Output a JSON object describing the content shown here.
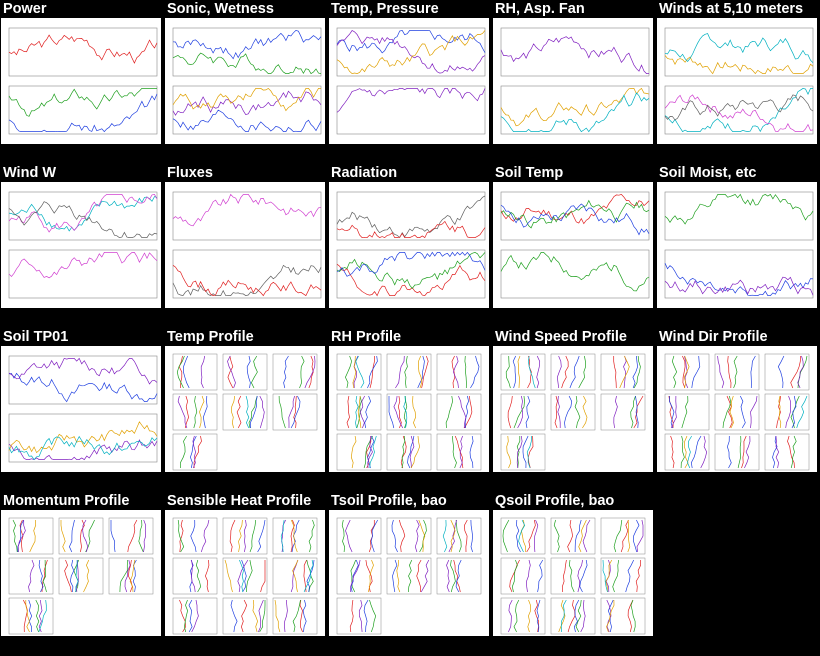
{
  "panels": [
    {
      "title": "Power",
      "kind": "ts"
    },
    {
      "title": "Sonic, Wetness",
      "kind": "ts"
    },
    {
      "title": "Temp, Pressure",
      "kind": "ts"
    },
    {
      "title": "RH, Asp. Fan",
      "kind": "ts"
    },
    {
      "title": "Winds at 5,10 meters",
      "kind": "ts"
    },
    {
      "title": "Wind W",
      "kind": "ts"
    },
    {
      "title": "Fluxes",
      "kind": "ts"
    },
    {
      "title": "Radiation",
      "kind": "ts"
    },
    {
      "title": "Soil Temp",
      "kind": "ts"
    },
    {
      "title": "Soil Moist, etc",
      "kind": "ts"
    },
    {
      "title": "Soil TP01",
      "kind": "ts"
    },
    {
      "title": "Temp Profile",
      "kind": "profile"
    },
    {
      "title": "RH Profile",
      "kind": "profile"
    },
    {
      "title": "Wind Speed Profile",
      "kind": "profile"
    },
    {
      "title": "Wind Dir Profile",
      "kind": "profile"
    },
    {
      "title": "Momentum Profile",
      "kind": "profile"
    },
    {
      "title": "Sensible Heat Profile",
      "kind": "profile"
    },
    {
      "title": "Tsoil Profile, bao",
      "kind": "profile"
    },
    {
      "title": "Qsoil Profile, bao",
      "kind": "profile"
    }
  ],
  "colors": {
    "background": "#000000",
    "title": "#ffffff",
    "thumb_bg": "#ffffff",
    "trace_red": "#e02020",
    "trace_green": "#20a020",
    "trace_blue": "#2040e0",
    "trace_purple": "#8020c0"
  }
}
